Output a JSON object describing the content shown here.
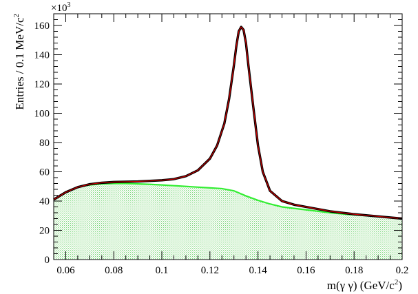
{
  "chart_data": {
    "type": "line",
    "title": "",
    "xlabel_main": "m(γ γ)  (GeV/c",
    "xlabel_sup": "2",
    "xlabel_close": ")",
    "ylabel_main": "Entries / 0.1 MeV/c",
    "ylabel_sup": "2",
    "y_exponent_base": "×10",
    "y_exponent_sup": "3",
    "xlim": [
      0.055,
      0.2
    ],
    "ylim": [
      0,
      168
    ],
    "x_ticks": [
      0.06,
      0.08,
      0.1,
      0.12,
      0.14,
      0.16,
      0.18,
      0.2
    ],
    "x_tick_labels": [
      "0.06",
      "0.08",
      "0.1",
      "0.12",
      "0.14",
      "0.16",
      "0.18",
      "0.2"
    ],
    "y_ticks": [
      0,
      20,
      40,
      60,
      80,
      100,
      120,
      140,
      160
    ],
    "y_tick_labels": [
      "0",
      "20",
      "40",
      "60",
      "80",
      "100",
      "120",
      "140",
      "160"
    ],
    "grid": false,
    "legend": "none",
    "colors": {
      "data": "#000000",
      "fit": "#cc0000",
      "background_line": "#33ee33",
      "background_fill": "#d6f5d0"
    },
    "series": [
      {
        "role": "data_and_total_fit",
        "x": [
          0.055,
          0.06,
          0.065,
          0.07,
          0.075,
          0.08,
          0.085,
          0.09,
          0.095,
          0.1,
          0.105,
          0.11,
          0.115,
          0.12,
          0.123,
          0.126,
          0.128,
          0.13,
          0.131,
          0.132,
          0.133,
          0.134,
          0.135,
          0.136,
          0.138,
          0.14,
          0.142,
          0.145,
          0.15,
          0.155,
          0.16,
          0.17,
          0.18,
          0.19,
          0.2
        ],
        "values": [
          41,
          46,
          49.5,
          51.5,
          52.5,
          53,
          53.2,
          53.4,
          53.8,
          54.2,
          55,
          57,
          61,
          69,
          78,
          93,
          110,
          133,
          146,
          156,
          159,
          157,
          148,
          133,
          105,
          78,
          60,
          47,
          40,
          37.5,
          36,
          33,
          31,
          29.5,
          28
        ]
      },
      {
        "role": "background",
        "x": [
          0.055,
          0.06,
          0.065,
          0.07,
          0.075,
          0.08,
          0.085,
          0.09,
          0.095,
          0.1,
          0.105,
          0.11,
          0.115,
          0.12,
          0.125,
          0.13,
          0.135,
          0.14,
          0.145,
          0.15,
          0.155,
          0.16,
          0.17,
          0.18,
          0.19,
          0.2
        ],
        "values": [
          41,
          46,
          49.5,
          51,
          51.7,
          52,
          52,
          51.7,
          51.4,
          51,
          50.5,
          50,
          49.5,
          49,
          48.5,
          47,
          43.5,
          40.5,
          38,
          36,
          35,
          34,
          32,
          30.5,
          29.5,
          28
        ]
      }
    ]
  }
}
